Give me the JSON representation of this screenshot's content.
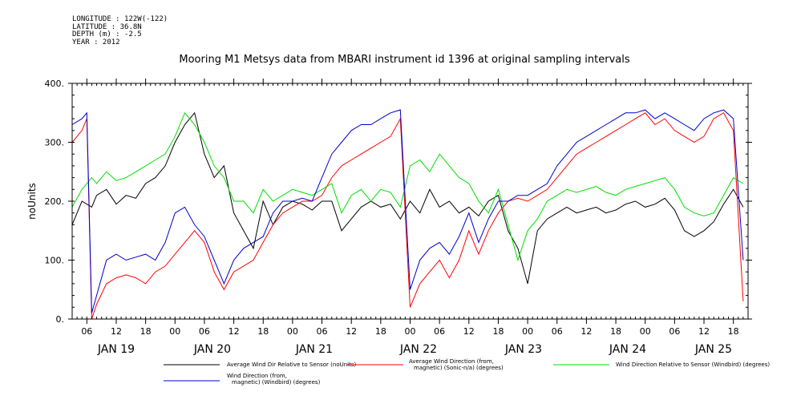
{
  "meta": {
    "longitude": "LONGITUDE : 122W(-122)",
    "latitude": "LATITUDE : 36.8N",
    "depth": "DEPTH (m) : -2.5",
    "year": "YEAR : 2012"
  },
  "chart_data": {
    "type": "line",
    "title": "Mooring M1 Metsys data from MBARI instrument id 1396 at original sampling intervals",
    "ylabel": "noUnits",
    "xlabel": "",
    "ylim": [
      0,
      400
    ],
    "yticks": [
      0,
      100,
      200,
      300,
      400
    ],
    "xlim": [
      3,
      141
    ],
    "hour_ticks": [
      {
        "x": 6,
        "label": "06"
      },
      {
        "x": 12,
        "label": "12"
      },
      {
        "x": 18,
        "label": "18"
      },
      {
        "x": 24,
        "label": "00"
      },
      {
        "x": 30,
        "label": "06"
      },
      {
        "x": 36,
        "label": "12"
      },
      {
        "x": 42,
        "label": "18"
      },
      {
        "x": 48,
        "label": "00"
      },
      {
        "x": 54,
        "label": "06"
      },
      {
        "x": 60,
        "label": "12"
      },
      {
        "x": 66,
        "label": "18"
      },
      {
        "x": 72,
        "label": "00"
      },
      {
        "x": 78,
        "label": "06"
      },
      {
        "x": 84,
        "label": "12"
      },
      {
        "x": 90,
        "label": "18"
      },
      {
        "x": 96,
        "label": "00"
      },
      {
        "x": 102,
        "label": "06"
      },
      {
        "x": 108,
        "label": "12"
      },
      {
        "x": 114,
        "label": "18"
      },
      {
        "x": 120,
        "label": "00"
      },
      {
        "x": 126,
        "label": "06"
      },
      {
        "x": 132,
        "label": "12"
      },
      {
        "x": 138,
        "label": "18"
      }
    ],
    "day_labels": [
      {
        "x": 12,
        "label": "JAN 19"
      },
      {
        "x": 36,
        "label": "JAN 20"
      },
      {
        "x": 60,
        "label": "JAN 21"
      },
      {
        "x": 84,
        "label": "JAN 22"
      },
      {
        "x": 108,
        "label": "JAN 23"
      },
      {
        "x": 132,
        "label": "JAN 24"
      },
      {
        "x": 156,
        "label": "JAN 25"
      }
    ],
    "series": [
      {
        "name": "Average Wind Dir Relative to Sensor (noUnits)",
        "color": "#000000",
        "x": [
          3,
          5,
          7,
          8,
          10,
          12,
          14,
          16,
          18,
          20,
          22,
          24,
          26,
          28,
          30,
          32,
          34,
          36,
          38,
          40,
          42,
          44,
          46,
          48,
          50,
          52,
          54,
          56,
          58,
          60,
          62,
          64,
          66,
          68,
          70,
          72,
          74,
          76,
          78,
          80,
          82,
          84,
          86,
          88,
          90,
          92,
          94,
          96,
          98,
          100,
          102,
          104,
          106,
          108,
          110,
          112,
          114,
          116,
          118,
          120,
          122,
          124,
          126,
          128,
          130,
          132,
          134,
          136,
          138,
          140
        ],
        "y": [
          160,
          200,
          190,
          210,
          220,
          195,
          210,
          205,
          230,
          240,
          260,
          300,
          330,
          350,
          280,
          240,
          260,
          180,
          150,
          120,
          200,
          160,
          190,
          200,
          195,
          185,
          200,
          200,
          150,
          170,
          190,
          200,
          190,
          195,
          170,
          200,
          180,
          220,
          190,
          200,
          180,
          190,
          175,
          200,
          210,
          150,
          120,
          60,
          150,
          170,
          180,
          190,
          180,
          185,
          190,
          180,
          185,
          195,
          200,
          190,
          195,
          205,
          185,
          150,
          140,
          150,
          165,
          195,
          220,
          190
        ]
      },
      {
        "name": "Average Wind Direction (from, magnetic) (Sonic-n/a) (degrees)",
        "color": "#ff0000",
        "x": [
          3,
          5,
          6,
          7,
          8,
          10,
          12,
          14,
          16,
          18,
          20,
          22,
          24,
          26,
          28,
          30,
          32,
          34,
          36,
          38,
          40,
          42,
          44,
          46,
          48,
          50,
          52,
          54,
          56,
          58,
          60,
          62,
          64,
          66,
          68,
          70,
          72,
          74,
          76,
          78,
          80,
          82,
          84,
          86,
          88,
          90,
          92,
          94,
          96,
          98,
          100,
          102,
          104,
          106,
          108,
          110,
          112,
          114,
          116,
          118,
          120,
          122,
          124,
          126,
          128,
          130,
          132,
          134,
          136,
          138,
          140
        ],
        "y": [
          300,
          320,
          340,
          0,
          25,
          60,
          70,
          75,
          70,
          60,
          80,
          90,
          110,
          130,
          150,
          130,
          80,
          50,
          80,
          90,
          100,
          130,
          160,
          180,
          190,
          200,
          200,
          210,
          240,
          260,
          270,
          280,
          290,
          300,
          310,
          340,
          20,
          60,
          80,
          100,
          70,
          100,
          150,
          110,
          150,
          180,
          200,
          205,
          200,
          210,
          220,
          240,
          260,
          280,
          290,
          300,
          310,
          320,
          330,
          340,
          350,
          330,
          340,
          320,
          310,
          300,
          310,
          340,
          350,
          320,
          30
        ]
      },
      {
        "name": "Wind Direction Relative to Sensor (Windbird) (degrees)",
        "color": "#00e000",
        "x": [
          3,
          5,
          7,
          8,
          10,
          12,
          14,
          16,
          18,
          20,
          22,
          24,
          26,
          28,
          30,
          32,
          34,
          36,
          38,
          40,
          42,
          44,
          46,
          48,
          50,
          52,
          54,
          56,
          58,
          60,
          62,
          64,
          66,
          68,
          70,
          72,
          74,
          76,
          78,
          80,
          82,
          84,
          86,
          88,
          90,
          92,
          94,
          96,
          98,
          100,
          102,
          104,
          106,
          108,
          110,
          112,
          114,
          116,
          118,
          120,
          122,
          124,
          126,
          128,
          130,
          132,
          134,
          136,
          138,
          140
        ],
        "y": [
          190,
          220,
          240,
          230,
          250,
          235,
          240,
          250,
          260,
          270,
          280,
          310,
          350,
          330,
          300,
          260,
          240,
          200,
          200,
          180,
          220,
          200,
          210,
          220,
          215,
          210,
          220,
          230,
          180,
          210,
          220,
          200,
          220,
          215,
          190,
          260,
          270,
          250,
          280,
          260,
          240,
          230,
          200,
          180,
          220,
          160,
          100,
          150,
          170,
          200,
          210,
          220,
          215,
          220,
          225,
          215,
          210,
          220,
          225,
          230,
          235,
          240,
          220,
          190,
          180,
          175,
          180,
          210,
          240,
          230
        ]
      },
      {
        "name": "Wind Direction (from, magnetic) (Windbird) (degrees)",
        "color": "#0000cc",
        "x": [
          3,
          5,
          6,
          7,
          8,
          10,
          12,
          14,
          16,
          18,
          20,
          22,
          24,
          26,
          28,
          30,
          32,
          34,
          36,
          38,
          40,
          42,
          44,
          46,
          48,
          50,
          52,
          54,
          56,
          58,
          60,
          62,
          64,
          66,
          68,
          70,
          72,
          74,
          76,
          78,
          80,
          82,
          84,
          86,
          88,
          90,
          92,
          94,
          96,
          98,
          100,
          102,
          104,
          106,
          108,
          110,
          112,
          114,
          116,
          118,
          120,
          122,
          124,
          126,
          128,
          130,
          132,
          134,
          136,
          138,
          140
        ],
        "y": [
          330,
          340,
          350,
          10,
          40,
          100,
          110,
          100,
          105,
          110,
          100,
          130,
          180,
          190,
          160,
          140,
          100,
          60,
          100,
          120,
          130,
          140,
          180,
          200,
          200,
          205,
          200,
          240,
          280,
          300,
          320,
          330,
          330,
          340,
          350,
          355,
          50,
          100,
          120,
          130,
          110,
          140,
          180,
          130,
          170,
          200,
          200,
          210,
          210,
          220,
          230,
          260,
          280,
          300,
          310,
          320,
          330,
          340,
          350,
          350,
          355,
          340,
          350,
          340,
          330,
          320,
          340,
          350,
          355,
          340,
          100
        ]
      }
    ]
  }
}
